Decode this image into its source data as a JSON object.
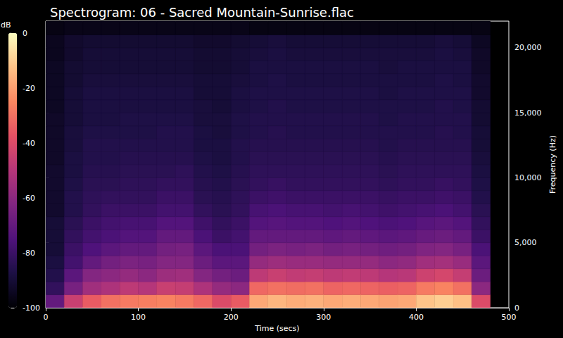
{
  "chart_data": {
    "type": "heatmap",
    "title": "Spectrogram: 06 - Sacred Mountain-Sunrise.flac",
    "xlabel": "Time (secs)",
    "ylabel": "Frequency (Hz)",
    "xlim": [
      0,
      500
    ],
    "xticks": [
      0,
      100,
      200,
      300,
      400,
      500
    ],
    "ylim": [
      0,
      22050
    ],
    "yticks": [
      0,
      5000,
      10000,
      15000,
      20000
    ],
    "grid": false,
    "time_bins": [
      0,
      20,
      40,
      60,
      80,
      100,
      120,
      140,
      160,
      180,
      200,
      220,
      240,
      260,
      280,
      300,
      320,
      340,
      360,
      380,
      400,
      420,
      440,
      460,
      480
    ],
    "freq_bins": [
      0,
      1000,
      2000,
      3000,
      4000,
      5000,
      6000,
      7000,
      8000,
      9000,
      10000,
      11000,
      12000,
      13000,
      14000,
      15000,
      16000,
      17000,
      18000,
      19000,
      20000,
      21000,
      22050
    ],
    "cells": [
      [
        -70,
        -82,
        -86,
        -88,
        -90,
        -90,
        -90,
        -92,
        -92,
        -92,
        -92,
        -93,
        -93,
        -93,
        -93,
        -94,
        -94,
        -94,
        -94,
        -95,
        -95,
        -97
      ],
      [
        -45,
        -65,
        -72,
        -78,
        -80,
        -82,
        -84,
        -86,
        -86,
        -87,
        -88,
        -88,
        -89,
        -89,
        -90,
        -90,
        -90,
        -91,
        -91,
        -92,
        -92,
        -96
      ],
      [
        -35,
        -55,
        -62,
        -70,
        -75,
        -78,
        -80,
        -82,
        -83,
        -84,
        -85,
        -86,
        -86,
        -87,
        -88,
        -88,
        -88,
        -89,
        -90,
        -90,
        -91,
        -96
      ],
      [
        -30,
        -52,
        -60,
        -66,
        -72,
        -76,
        -78,
        -80,
        -82,
        -84,
        -85,
        -86,
        -86,
        -87,
        -88,
        -88,
        -88,
        -89,
        -90,
        -90,
        -91,
        -96
      ],
      [
        -28,
        -48,
        -58,
        -64,
        -70,
        -74,
        -77,
        -80,
        -82,
        -83,
        -84,
        -85,
        -86,
        -87,
        -87,
        -88,
        -88,
        -89,
        -90,
        -90,
        -91,
        -96
      ],
      [
        -27,
        -50,
        -60,
        -65,
        -70,
        -74,
        -77,
        -80,
        -82,
        -83,
        -84,
        -85,
        -86,
        -87,
        -87,
        -88,
        -88,
        -89,
        -90,
        -90,
        -91,
        -96
      ],
      [
        -26,
        -45,
        -56,
        -62,
        -66,
        -70,
        -74,
        -78,
        -80,
        -82,
        -84,
        -85,
        -86,
        -86,
        -87,
        -88,
        -88,
        -89,
        -90,
        -90,
        -91,
        -96
      ],
      [
        -28,
        -46,
        -55,
        -62,
        -65,
        -70,
        -74,
        -78,
        -80,
        -82,
        -83,
        -85,
        -86,
        -86,
        -87,
        -88,
        -88,
        -89,
        -90,
        -90,
        -91,
        -96
      ],
      [
        -32,
        -52,
        -62,
        -68,
        -72,
        -76,
        -79,
        -82,
        -84,
        -85,
        -86,
        -87,
        -88,
        -88,
        -89,
        -89,
        -90,
        -90,
        -91,
        -91,
        -92,
        -96
      ],
      [
        -40,
        -58,
        -66,
        -72,
        -76,
        -80,
        -82,
        -84,
        -85,
        -86,
        -87,
        -88,
        -88,
        -89,
        -89,
        -90,
        -90,
        -90,
        -91,
        -91,
        -92,
        -96
      ],
      [
        -35,
        -60,
        -68,
        -72,
        -76,
        -78,
        -80,
        -82,
        -83,
        -84,
        -85,
        -86,
        -86,
        -87,
        -87,
        -88,
        -88,
        -89,
        -90,
        -90,
        -91,
        -96
      ],
      [
        -18,
        -32,
        -48,
        -58,
        -66,
        -70,
        -74,
        -77,
        -80,
        -82,
        -83,
        -84,
        -85,
        -86,
        -86,
        -87,
        -87,
        -88,
        -88,
        -89,
        -90,
        -97
      ],
      [
        -15,
        -30,
        -45,
        -56,
        -64,
        -70,
        -73,
        -76,
        -79,
        -81,
        -83,
        -84,
        -85,
        -85,
        -86,
        -86,
        -87,
        -87,
        -88,
        -88,
        -89,
        -97
      ],
      [
        -17,
        -31,
        -47,
        -57,
        -65,
        -70,
        -74,
        -77,
        -80,
        -82,
        -83,
        -84,
        -85,
        -86,
        -86,
        -87,
        -87,
        -88,
        -88,
        -89,
        -90,
        -97
      ],
      [
        -16,
        -30,
        -46,
        -57,
        -64,
        -70,
        -74,
        -77,
        -80,
        -82,
        -83,
        -84,
        -85,
        -86,
        -86,
        -87,
        -87,
        -88,
        -88,
        -89,
        -90,
        -97
      ],
      [
        -18,
        -33,
        -48,
        -58,
        -66,
        -71,
        -75,
        -78,
        -80,
        -82,
        -83,
        -84,
        -85,
        -86,
        -86,
        -87,
        -87,
        -88,
        -88,
        -89,
        -90,
        -97
      ],
      [
        -17,
        -32,
        -47,
        -58,
        -65,
        -70,
        -74,
        -77,
        -80,
        -82,
        -83,
        -84,
        -85,
        -86,
        -86,
        -87,
        -87,
        -88,
        -88,
        -89,
        -90,
        -97
      ],
      [
        -18,
        -33,
        -48,
        -58,
        -66,
        -71,
        -75,
        -78,
        -80,
        -82,
        -83,
        -84,
        -85,
        -86,
        -86,
        -87,
        -87,
        -88,
        -88,
        -89,
        -90,
        -97
      ],
      [
        -19,
        -34,
        -50,
        -60,
        -67,
        -72,
        -76,
        -79,
        -81,
        -83,
        -84,
        -85,
        -86,
        -86,
        -87,
        -87,
        -88,
        -88,
        -89,
        -89,
        -90,
        -97
      ],
      [
        -18,
        -33,
        -49,
        -59,
        -66,
        -71,
        -75,
        -78,
        -80,
        -82,
        -83,
        -84,
        -85,
        -86,
        -86,
        -87,
        -87,
        -88,
        -88,
        -89,
        -90,
        -97
      ],
      [
        -12,
        -28,
        -44,
        -55,
        -63,
        -69,
        -73,
        -77,
        -80,
        -82,
        -83,
        -84,
        -85,
        -86,
        -86,
        -87,
        -87,
        -88,
        -88,
        -89,
        -90,
        -97
      ],
      [
        -10,
        -26,
        -42,
        -54,
        -62,
        -68,
        -72,
        -76,
        -79,
        -81,
        -83,
        -84,
        -85,
        -85,
        -86,
        -86,
        -87,
        -87,
        -88,
        -88,
        -89,
        -97
      ],
      [
        -13,
        -30,
        -46,
        -57,
        -65,
        -70,
        -74,
        -78,
        -80,
        -82,
        -83,
        -84,
        -85,
        -86,
        -86,
        -87,
        -87,
        -88,
        -88,
        -89,
        -90,
        -97
      ],
      [
        -40,
        -60,
        -68,
        -72,
        -76,
        -80,
        -82,
        -84,
        -86,
        -87,
        -88,
        -89,
        -90,
        -90,
        -91,
        -91,
        -92,
        -92,
        -93,
        -93,
        -94,
        -97
      ]
    ],
    "colorbar": {
      "label": "dB",
      "range": [
        -100,
        0
      ],
      "ticks": [
        -100,
        -80,
        -60,
        -40,
        -20,
        0
      ]
    }
  }
}
